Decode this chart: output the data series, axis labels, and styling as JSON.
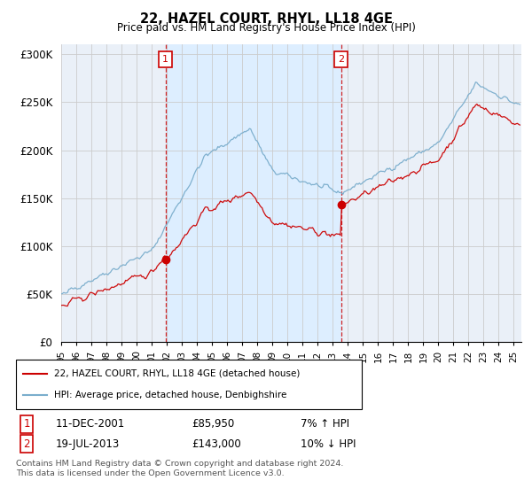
{
  "title": "22, HAZEL COURT, RHYL, LL18 4GE",
  "subtitle": "Price paid vs. HM Land Registry's House Price Index (HPI)",
  "ylabel_values": [
    "£0",
    "£50K",
    "£100K",
    "£150K",
    "£200K",
    "£250K",
    "£300K"
  ],
  "yticks": [
    0,
    50000,
    100000,
    150000,
    200000,
    250000,
    300000
  ],
  "ylim": [
    0,
    310000
  ],
  "legend_line1": "22, HAZEL COURT, RHYL, LL18 4GE (detached house)",
  "legend_line2": "HPI: Average price, detached house, Denbighshire",
  "sale1_date": "11-DEC-2001",
  "sale1_price": "£85,950",
  "sale1_hpi": "7% ↑ HPI",
  "sale2_date": "19-JUL-2013",
  "sale2_price": "£143,000",
  "sale2_hpi": "10% ↓ HPI",
  "footer": "Contains HM Land Registry data © Crown copyright and database right 2024.\nThis data is licensed under the Open Government Licence v3.0.",
  "red_color": "#cc0000",
  "blue_color": "#7aadcc",
  "shade_color": "#ddeeff",
  "vline_color": "#cc0000",
  "grid_color": "#cccccc",
  "background_color": "#eaf0f8",
  "sale1_year": 2001.92,
  "sale2_year": 2013.55,
  "sale1_price_val": 85950,
  "sale2_price_val": 143000,
  "xlim_start": 1995,
  "xlim_end": 2025.5
}
